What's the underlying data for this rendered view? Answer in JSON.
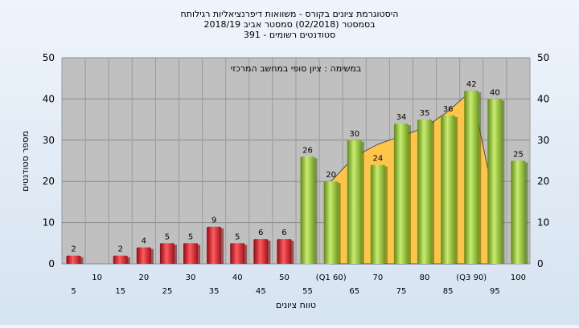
{
  "chart_data": {
    "type": "bar",
    "title": [
      "היסטוגרמת ציונים בקורס - משוואות דיפרנציאליות רגילותח",
      "בסמסטר  (02/2018)  סמסטר אביב 2018/19",
      "סטודנטים רשומים - 391"
    ],
    "annotation": "במשימה : ציון סופי במחשב המרכזי",
    "xlabel": "טווח ציונים",
    "ylabel": "מספר סטודנטים",
    "ylim": [
      0,
      50
    ],
    "yticks": [
      0,
      10,
      20,
      30,
      40,
      50
    ],
    "grid": true,
    "categories": [
      "5",
      "10",
      "15",
      "20",
      "25",
      "30",
      "35",
      "40",
      "45",
      "50",
      "55",
      "(Q1 60)",
      "65",
      "70",
      "75",
      "80",
      "85",
      "(Q3 90)",
      "95",
      "100"
    ],
    "values": [
      2,
      0,
      2,
      4,
      5,
      5,
      9,
      5,
      6,
      6,
      26,
      20,
      30,
      24,
      34,
      35,
      36,
      42,
      40,
      25
    ],
    "colors": {
      "failing": "#e0303a",
      "passing": "#9ccd3c",
      "area": "#ffc54a",
      "plot_bg": "#c0c0c0"
    },
    "area_series": {
      "x": [
        "(Q1 60)",
        "65",
        "70",
        "75",
        "80",
        "85",
        "(Q3 90)",
        "95"
      ],
      "values": [
        20,
        26,
        29,
        31,
        33,
        37,
        42,
        15
      ]
    }
  }
}
